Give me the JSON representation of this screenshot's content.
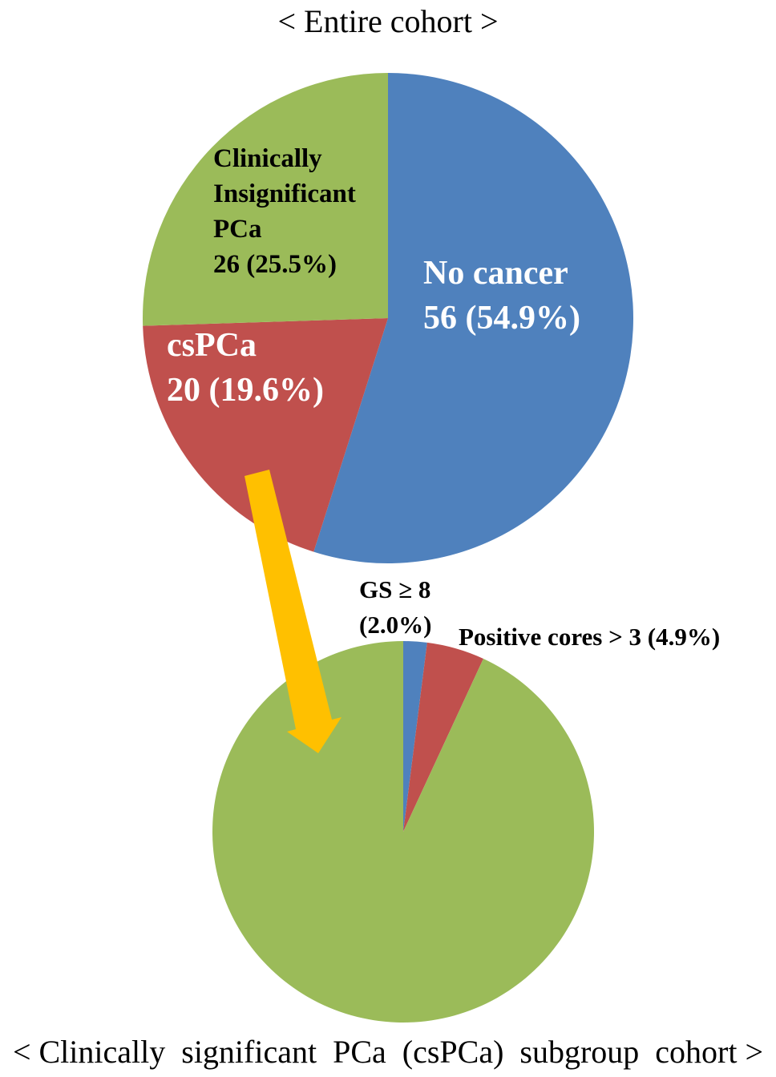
{
  "chart_data": [
    {
      "type": "pie",
      "title": "< Entire cohort >",
      "slices": [
        {
          "label_lines": [
            "No cancer",
            "56 (54.9%)"
          ],
          "count": 56,
          "percent": 54.9,
          "color": "#4F81BD"
        },
        {
          "label_lines": [
            "csPCa",
            "20 (19.6%)"
          ],
          "count": 20,
          "percent": 19.6,
          "color": "#C0504D"
        },
        {
          "label_lines": [
            "Clinically",
            "Insignificant",
            "PCa",
            "26 (25.5%)"
          ],
          "count": 26,
          "percent": 25.5,
          "color": "#9BBB59"
        }
      ]
    },
    {
      "type": "pie",
      "title": "< Clinically  significant  PCa  (csPCa)  subgroup  cohort >",
      "slices": [
        {
          "label_lines": [
            "GS ≥ 8",
            "(2.0%)"
          ],
          "percent": 2.0,
          "color": "#4F81BD"
        },
        {
          "label_lines": [
            "Positive cores > 3 (4.9%)"
          ],
          "percent": 4.9,
          "color": "#C0504D"
        },
        {
          "label_lines": [],
          "percent": 93.1,
          "color": "#9BBB59"
        }
      ]
    }
  ],
  "arrow_color": "#FFC000"
}
